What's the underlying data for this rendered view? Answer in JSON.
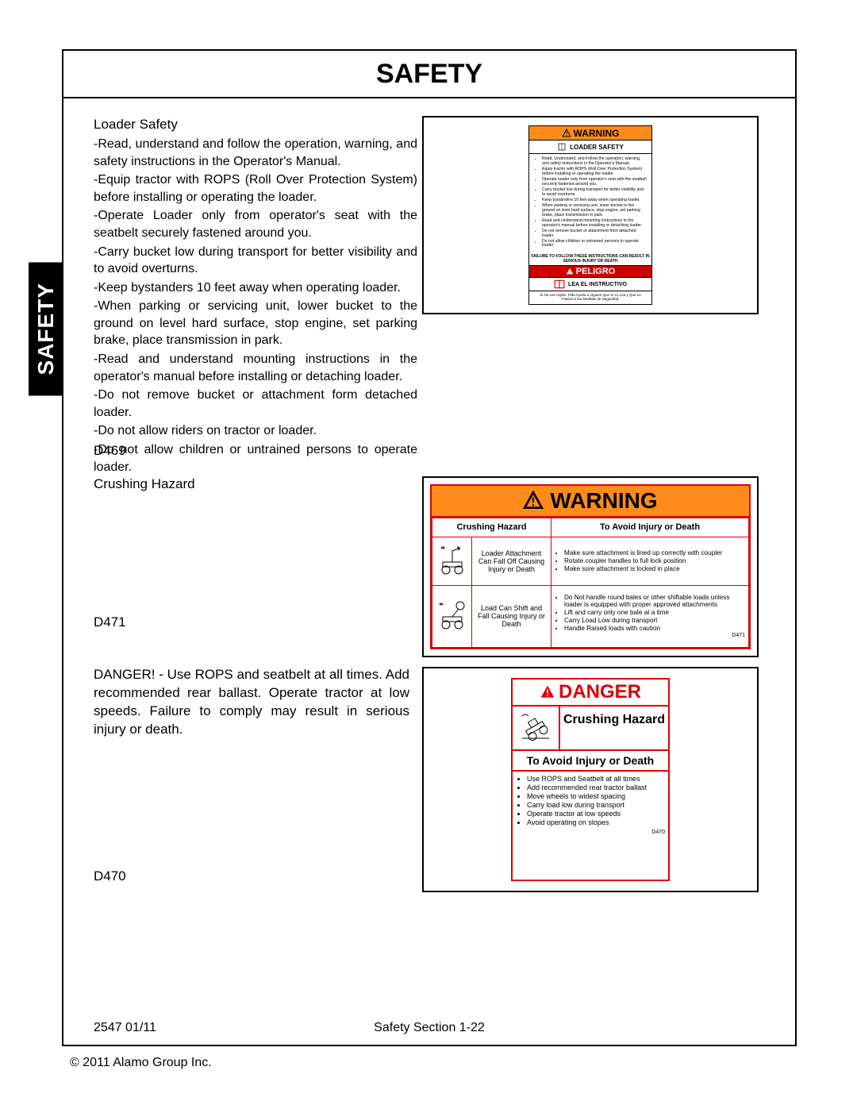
{
  "page_title": "SAFETY",
  "side_tab": "SAFETY",
  "loader_safety": {
    "heading": "Loader Safety",
    "items": [
      "-Read, understand and follow the operation, warning, and safety instructions in the Operator's Manual.",
      "-Equip tractor with ROPS (Roll Over Protection System) before installing or operating the loader.",
      "-Operate Loader only from operator's seat with the seatbelt securely fastened around you.",
      "-Carry bucket low during transport for better visibility and to avoid overturns.",
      "-Keep bystanders 10 feet away when operating loader.",
      "-When parking or servicing unit, lower bucket to the ground on level hard surface, stop engine, set parking brake, place transmission in park.",
      "-Read and understand mounting instructions in the operator's manual before installing or detaching loader.",
      "-Do not remove bucket or attachment form detached loader.",
      "-Do not allow riders on tractor or loader.",
      "-Do not allow children or untrained persons to operate loader."
    ]
  },
  "code_d469": "D469",
  "crushing_label": "Crushing Hazard",
  "code_d471": "D471",
  "danger_paragraph": "DANGER! -  Use ROPS and seatbelt at all times. Add recommended rear ballast. Operate tractor at low speeds. Failure to comply may result in serious injury or death.",
  "code_d470": "D470",
  "footer": {
    "left": "2547   01/11",
    "center": "Safety Section 1-22"
  },
  "copyright": "© 2011 Alamo Group Inc.",
  "colors": {
    "orange": "#ff8c1a",
    "red": "#cc0000",
    "border_red": "#d00000"
  },
  "label1": {
    "warning": "WARNING",
    "subtitle": "LOADER SAFETY",
    "bullets": [
      "Read, Understand, and Follow the operation, warning, and safety instructions in the Operator's Manual.",
      "Equip tractor with ROPS (Roll Over Protection System) before installing or operating the loader.",
      "Operate loader only from operator's seat with the seatbelt securely fastened around you.",
      "Carry bucket low during transport for better visibility and to avoid overturns.",
      "Keep bystanders 10 feet away when operating loader.",
      "When parking or servicing unit, lower bucket to the ground on level hard surface, stop engine, set parking brake, place transmission in park.",
      "Read and Understand mounting instructions in the operator's manual before installing or detaching loader.",
      "Do not remove bucket or attachment from detached loader.",
      "Do not allow children or untrained persons to operate loader."
    ],
    "failure": "FAILURE TO FOLLOW THESE INSTRUCTIONS CAN RESULT IN SERIOUS INJURY OR DEATH",
    "peligro": "PELIGRO",
    "lea": "LEA EL INSTRUCTIVO",
    "spanish": "Si No Lee Ingles, Pida Ayuda a Alguien Que Si Lo Lea y Que Le Traduzca las Medidas de Seguridad."
  },
  "label2": {
    "warning": "WARNING",
    "th1": "Crushing Hazard",
    "th2": "To Avoid Injury or Death",
    "row1_mid": "Loader Attachment Can Fall Off Causing Injury or Death",
    "row1_bullets": [
      "Make sure attachment is lined up correctly with coupler",
      "Rotate coupler handles to full lock position",
      "Make sure attachment is locked in place"
    ],
    "row2_mid": "Load Can Shift and Fall Causing Injury or Death",
    "row2_bullets": [
      "Do Not handle round bales or other shiftable loads unless loader is equipped with proper approved attachments",
      "Lift and carry only one bale at a time",
      "Carry Load Low during transport",
      "Handle Raised loads with caution"
    ],
    "code": "D471"
  },
  "label3": {
    "danger": "DANGER",
    "crushing": "Crushing Hazard",
    "avoid": "To Avoid Injury or Death",
    "bullets": [
      "Use ROPS and Seatbelt at all times",
      "Add recommended rear tractor ballast",
      "Move wheels to widest spacing",
      "Carry load low during transport",
      "Operate tractor at low speeds",
      "Avoid operating on slopes"
    ],
    "code": "D470"
  }
}
